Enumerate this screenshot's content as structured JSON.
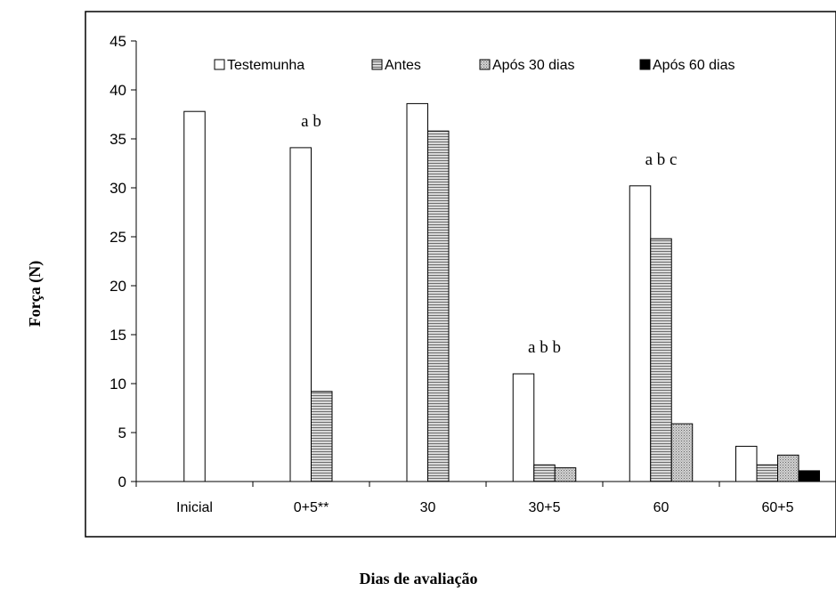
{
  "chart_data": {
    "type": "bar",
    "xlabel": "Dias de avaliação",
    "ylabel": "Força (N)",
    "ylim": [
      0,
      45
    ],
    "yticks": [
      0,
      5,
      10,
      15,
      20,
      25,
      30,
      35,
      40,
      45
    ],
    "categories": [
      "Inicial",
      "0+5**",
      "30",
      "30+5",
      "60",
      "60+5"
    ],
    "legend_position": "top",
    "series": [
      {
        "name": "Testemunha",
        "fill": "#ffffff",
        "pattern": "none",
        "values": [
          37.8,
          34.1,
          38.6,
          11.0,
          30.2,
          3.6
        ]
      },
      {
        "name": "Antes",
        "fill": "#c8c8c8",
        "pattern": "horizontal",
        "values": [
          null,
          9.2,
          35.8,
          1.7,
          24.8,
          1.7
        ]
      },
      {
        "name": "Após 30 dias",
        "fill": "#c8c8c8",
        "pattern": "dotted",
        "values": [
          null,
          null,
          null,
          1.4,
          5.9,
          2.7
        ]
      },
      {
        "name": "Após 60 dias",
        "fill": "#000000",
        "pattern": "none",
        "values": [
          null,
          null,
          null,
          null,
          null,
          1.1
        ]
      }
    ],
    "annotations": [
      {
        "category": "0+5**",
        "text": "a  b"
      },
      {
        "category": "30+5",
        "text": "a  b  b"
      },
      {
        "category": "60",
        "text": "a  b  c"
      }
    ]
  }
}
